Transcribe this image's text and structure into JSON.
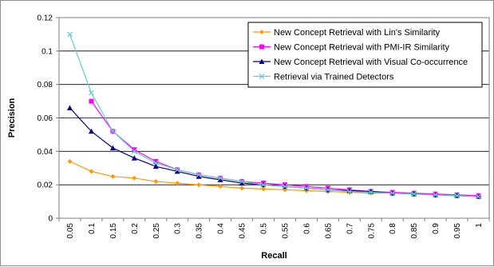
{
  "chart_data": {
    "type": "line",
    "title": "",
    "xlabel": "Recall",
    "ylabel": "Precision",
    "categories": [
      "0.05",
      "0.1",
      "0.15",
      "0.2",
      "0.25",
      "0.3",
      "0.35",
      "0.4",
      "0.45",
      "0.5",
      "0.55",
      "0.6",
      "0.65",
      "0.7",
      "0.75",
      "0.8",
      "0.85",
      "0.9",
      "0.95",
      "1"
    ],
    "yticks": [
      "0",
      "0.02",
      "0.04",
      "0.06",
      "0.08",
      "0.1",
      "0.12"
    ],
    "ylim": [
      0,
      0.12
    ],
    "grid": true,
    "legend_position": "top-right",
    "series": [
      {
        "name": "New Concept Retrieval with Lin's Similarity",
        "color": "#FF9900",
        "marker": "diamond",
        "values": [
          0.034,
          0.028,
          0.025,
          0.024,
          0.022,
          0.021,
          0.02,
          0.019,
          0.018,
          0.0175,
          0.017,
          0.0165,
          0.016,
          0.0155,
          0.015,
          0.015,
          0.0145,
          0.014,
          0.0135,
          0.013
        ]
      },
      {
        "name": "New Concept Retrieval with PMI-IR Similarity",
        "color": "#FF00FF",
        "marker": "square",
        "values": [
          null,
          0.07,
          0.052,
          0.041,
          0.034,
          0.029,
          0.026,
          0.024,
          0.022,
          0.021,
          0.02,
          0.019,
          0.018,
          0.017,
          0.016,
          0.0155,
          0.015,
          0.0145,
          0.014,
          0.0135
        ]
      },
      {
        "name": "New Concept Retrieval with Visual Co-occurrence",
        "color": "#000080",
        "marker": "triangle",
        "values": [
          0.066,
          0.052,
          0.042,
          0.036,
          0.031,
          0.028,
          0.025,
          0.023,
          0.021,
          0.02,
          0.019,
          0.018,
          0.017,
          0.0165,
          0.016,
          0.015,
          0.0145,
          0.014,
          0.0135,
          0.013
        ]
      },
      {
        "name": "Retrieval via Trained Detectors",
        "color": "#66CCCC",
        "marker": "x",
        "values": [
          0.11,
          0.075,
          0.052,
          0.04,
          0.033,
          0.029,
          0.026,
          0.024,
          0.022,
          0.02,
          0.019,
          0.018,
          0.017,
          0.016,
          0.0155,
          0.015,
          0.0145,
          0.014,
          0.0135,
          0.013
        ]
      }
    ]
  }
}
